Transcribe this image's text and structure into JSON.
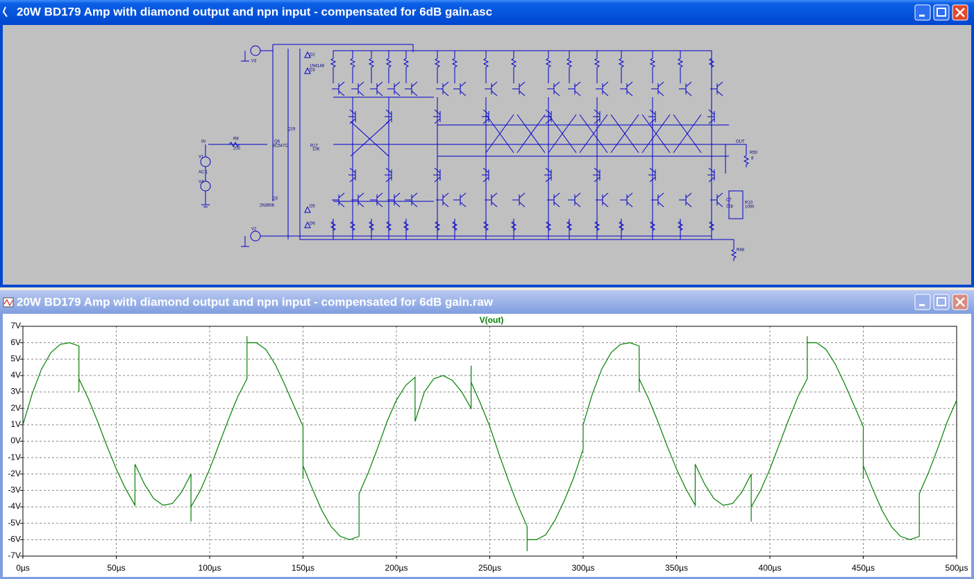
{
  "windows": [
    {
      "title": "20W BD179 Amp with diamond output and npn input - compensated for 6dB gain.asc"
    },
    {
      "title": "20W BD179 Amp with diamond output and npn input - compensated for 6dB gain.raw"
    }
  ],
  "schematic": {
    "labels": [
      "IN",
      "OUT",
      "R8",
      "200",
      "Q6",
      "BC547C",
      "Q19",
      "R17",
      "10K",
      "D2",
      "1N4148",
      "D3",
      "D5",
      "D6",
      "V1",
      "AC 1",
      "V4",
      "V2",
      "V3",
      "Q3",
      "2N3906",
      "R50",
      "8",
      "C7",
      "22p",
      "R10",
      "1000",
      "R48"
    ]
  },
  "chart_data": {
    "type": "line",
    "x": [
      0,
      5,
      10,
      15,
      20,
      25,
      30,
      30,
      30,
      35,
      40,
      45,
      50,
      55,
      60,
      60,
      65,
      70,
      75,
      80,
      85,
      90,
      90,
      90,
      95,
      100,
      105,
      110,
      115,
      120,
      120,
      120,
      125,
      130,
      135,
      140,
      145,
      150,
      150,
      150,
      155,
      160,
      165,
      170,
      175,
      180,
      180,
      185,
      190,
      195,
      200,
      205,
      210,
      210,
      215,
      220,
      225,
      230,
      235,
      240,
      240,
      240,
      245,
      250,
      255,
      260,
      265,
      270,
      270,
      270,
      275,
      280,
      285,
      290,
      295,
      300,
      300,
      305,
      310,
      315,
      320,
      325,
      330,
      330,
      330,
      335,
      340,
      345,
      350,
      355,
      360,
      360,
      365,
      370,
      375,
      380,
      385,
      390,
      390,
      390,
      395,
      400,
      405,
      410,
      415,
      420,
      420,
      420,
      425,
      430,
      435,
      440,
      445,
      450,
      450,
      450,
      455,
      460,
      465,
      470,
      475,
      480,
      480,
      485,
      490,
      495,
      500
    ],
    "series": [
      {
        "name": "V(out)",
        "color": "#008000",
        "values": [
          1,
          2.9,
          4.4,
          5.4,
          5.9,
          6,
          5.8,
          3.0,
          3.8,
          2.6,
          1.2,
          -0.3,
          -1.7,
          -2.9,
          -3.9,
          -1.4,
          -2.6,
          -3.5,
          -3.9,
          -3.8,
          -3.1,
          -2.0,
          -4.9,
          -4.0,
          -3.0,
          -1.7,
          -0.2,
          1.3,
          2.7,
          3.8,
          6.4,
          6.0,
          6,
          5.6,
          4.7,
          3.5,
          2.2,
          0.9,
          -2.3,
          -1.5,
          -2.9,
          -4.2,
          -5.2,
          -5.8,
          -6,
          -5.8,
          -3.2,
          -1.9,
          -0.4,
          1.2,
          2.5,
          3.4,
          3.9,
          1.2,
          3.0,
          3.8,
          4.0,
          3.7,
          3.0,
          2.0,
          4.6,
          3.6,
          2.3,
          0.9,
          -0.8,
          -2.4,
          -3.9,
          -5.2,
          -6.7,
          -6.0,
          -6,
          -5.7,
          -4.8,
          -3.6,
          -2.2,
          -0.5,
          1.0,
          2.9,
          4.4,
          5.4,
          5.9,
          6,
          5.8,
          3.0,
          3.8,
          2.6,
          1.2,
          -0.3,
          -1.7,
          -2.9,
          -3.9,
          -1.4,
          -2.6,
          -3.5,
          -3.9,
          -3.8,
          -3.1,
          -2.0,
          -4.9,
          -4.0,
          -3.0,
          -1.7,
          -0.2,
          1.3,
          2.7,
          3.8,
          6.4,
          6.0,
          6,
          5.6,
          4.7,
          3.5,
          2.2,
          0.9,
          -2.3,
          -1.5,
          -2.9,
          -4.2,
          -5.2,
          -5.8,
          -6,
          -5.8,
          -3.2,
          -1.9,
          -0.4,
          1.2,
          2.5
        ]
      }
    ],
    "xlim": [
      0,
      500
    ],
    "xticks": [
      {
        "value": 0,
        "label": "0µs"
      },
      {
        "value": 50,
        "label": "50µs"
      },
      {
        "value": 100,
        "label": "100µs"
      },
      {
        "value": 150,
        "label": "150µs"
      },
      {
        "value": 200,
        "label": "200µs"
      },
      {
        "value": 250,
        "label": "250µs"
      },
      {
        "value": 300,
        "label": "300µs"
      },
      {
        "value": 350,
        "label": "350µs"
      },
      {
        "value": 400,
        "label": "400µs"
      },
      {
        "value": 450,
        "label": "450µs"
      },
      {
        "value": 500,
        "label": "500µs"
      }
    ],
    "ylim": [
      -7,
      7
    ],
    "yticks": [
      {
        "value": -7,
        "label": "-7V"
      },
      {
        "value": -6,
        "label": "-6V"
      },
      {
        "value": -5,
        "label": "-5V"
      },
      {
        "value": -4,
        "label": "-4V"
      },
      {
        "value": -3,
        "label": "-3V"
      },
      {
        "value": -2,
        "label": "-2V"
      },
      {
        "value": -1,
        "label": "-1V"
      },
      {
        "value": 0,
        "label": "0V"
      },
      {
        "value": 1,
        "label": "1V"
      },
      {
        "value": 2,
        "label": "2V"
      },
      {
        "value": 3,
        "label": "3V"
      },
      {
        "value": 4,
        "label": "4V"
      },
      {
        "value": 5,
        "label": "5V"
      },
      {
        "value": 6,
        "label": "6V"
      },
      {
        "value": 7,
        "label": "7V"
      }
    ],
    "grid": true
  }
}
